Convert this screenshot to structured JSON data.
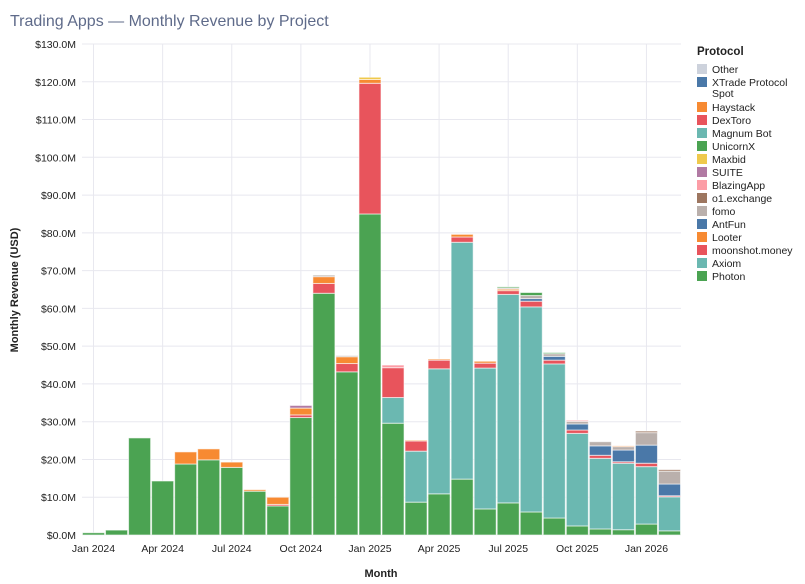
{
  "chart_data": {
    "type": "bar",
    "stacked": true,
    "title": "Trading Apps — Monthly Revenue by Project",
    "xlabel": "Month",
    "ylabel": "Monthly Revenue (USD)",
    "ylim": [
      0,
      130
    ],
    "y_unit": "USD millions",
    "grid": true,
    "legend_title": "Protocol",
    "legend_placement": "right",
    "x_tick_labels": [
      {
        "index": 0,
        "label": "Jan 2024"
      },
      {
        "index": 3,
        "label": "Apr 2024"
      },
      {
        "index": 6,
        "label": "Jul 2024"
      },
      {
        "index": 9,
        "label": "Oct 2024"
      },
      {
        "index": 12,
        "label": "Jan 2025"
      },
      {
        "index": 15,
        "label": "Apr 2025"
      },
      {
        "index": 18,
        "label": "Jul 2025"
      },
      {
        "index": 21,
        "label": "Oct 2025"
      },
      {
        "index": 24,
        "label": "Jan 2026"
      }
    ],
    "y_tick_labels": [
      "$0.0M",
      "$10.0M",
      "$20.0M",
      "$30.0M",
      "$40.0M",
      "$50.0M",
      "$60.0M",
      "$70.0M",
      "$80.0M",
      "$90.0M",
      "$100.0M",
      "$110.0M",
      "$120.0M",
      "$130.0M"
    ],
    "categories": [
      "2024-01",
      "2024-02",
      "2024-03",
      "2024-04",
      "2024-05",
      "2024-06",
      "2024-07",
      "2024-08",
      "2024-09",
      "2024-10",
      "2024-11",
      "2024-12",
      "2025-01",
      "2025-02",
      "2025-03",
      "2025-04",
      "2025-05",
      "2025-06",
      "2025-07",
      "2025-08",
      "2025-09",
      "2025-10",
      "2025-11",
      "2025-12",
      "2026-01",
      "2026-02"
    ],
    "series": [
      {
        "name": "Photon",
        "color": "#4ba352",
        "values": [
          0.6,
          1.3,
          25.7,
          14.3,
          18.8,
          19.9,
          17.9,
          11.6,
          7.7,
          31.1,
          64.0,
          43.2,
          85.0,
          29.6,
          8.7,
          10.9,
          14.8,
          6.9,
          8.5,
          6.1,
          4.5,
          2.4,
          1.6,
          1.4,
          2.9,
          1.1
        ]
      },
      {
        "name": "Axiom",
        "color": "#6bb8b1",
        "values": [
          0,
          0,
          0,
          0,
          0,
          0,
          0,
          0,
          0,
          0,
          0,
          0,
          0,
          6.8,
          13.5,
          33.1,
          62.7,
          37.3,
          55.2,
          54.3,
          40.8,
          24.5,
          18.7,
          17.6,
          15.2,
          9.0
        ]
      },
      {
        "name": "moonshot.money",
        "color": "#e8545c",
        "values": [
          0,
          0,
          0,
          0,
          0,
          0,
          0,
          0,
          0.4,
          0.7,
          2.6,
          2.2,
          34.6,
          7.9,
          2.7,
          2.3,
          1.4,
          1.3,
          1.0,
          1.5,
          1.0,
          0.9,
          0.8,
          0.4,
          0.9,
          0.3
        ]
      },
      {
        "name": "Looter",
        "color": "#f78a32",
        "values": [
          0,
          0,
          0,
          0,
          3.2,
          2.9,
          1.4,
          0.4,
          1.9,
          1.8,
          1.8,
          1.8,
          1.0,
          0,
          0.2,
          0.3,
          0.7,
          0.5,
          0.4,
          0,
          0,
          0,
          0,
          0,
          0,
          0
        ]
      },
      {
        "name": "AntFun",
        "color": "#4a78a8",
        "values": [
          0,
          0,
          0,
          0,
          0,
          0,
          0,
          0,
          0,
          0,
          0,
          0,
          0,
          0,
          0,
          0,
          0,
          0,
          0,
          0.7,
          1.0,
          1.6,
          2.5,
          3.1,
          4.8,
          3.1
        ]
      },
      {
        "name": "fomo",
        "color": "#bab0ac",
        "values": [
          0,
          0,
          0,
          0,
          0,
          0,
          0,
          0,
          0,
          0,
          0.4,
          0.3,
          0,
          0,
          0,
          0,
          0,
          0,
          0.3,
          0.8,
          0.7,
          0.7,
          1.1,
          0.9,
          3.3,
          3.4
        ]
      },
      {
        "name": "o1.exchange",
        "color": "#9d7660",
        "values": [
          0,
          0,
          0,
          0,
          0,
          0,
          0,
          0,
          0,
          0,
          0,
          0,
          0,
          0,
          0,
          0,
          0,
          0,
          0,
          0,
          0,
          0,
          0,
          0,
          0.4,
          0.4
        ]
      },
      {
        "name": "BlazingApp",
        "color": "#fc9da6",
        "values": [
          0,
          0,
          0,
          0,
          0,
          0,
          0,
          0,
          0,
          0,
          0,
          0,
          0,
          0.7,
          0,
          0,
          0,
          0,
          0,
          0,
          0,
          0.3,
          0,
          0,
          0,
          0
        ]
      },
      {
        "name": "SUITE",
        "color": "#b17aa3",
        "values": [
          0,
          0,
          0,
          0,
          0,
          0,
          0,
          0,
          0,
          0.7,
          0,
          0,
          0,
          0,
          0,
          0,
          0,
          0,
          0,
          0,
          0,
          0,
          0,
          0,
          0,
          0
        ]
      },
      {
        "name": "Maxbid",
        "color": "#efc94c",
        "values": [
          0,
          0,
          0,
          0,
          0,
          0,
          0,
          0,
          0,
          0,
          0,
          0,
          0.6,
          0,
          0,
          0,
          0,
          0,
          0,
          0,
          0,
          0,
          0,
          0,
          0,
          0
        ]
      },
      {
        "name": "UnicornX",
        "color": "#4ba352",
        "values": [
          0,
          0,
          0,
          0,
          0,
          0,
          0,
          0,
          0,
          0,
          0,
          0,
          0,
          0,
          0,
          0,
          0,
          0,
          0.3,
          0.8,
          0.3,
          0,
          0,
          0,
          0,
          0
        ]
      },
      {
        "name": "Magnum Bot",
        "color": "#6bb8b1",
        "values": [
          0,
          0,
          0,
          0,
          0,
          0,
          0,
          0,
          0,
          0,
          0,
          0,
          0,
          0,
          0,
          0,
          0,
          0,
          0,
          0,
          0,
          0,
          0,
          0,
          0,
          0
        ]
      },
      {
        "name": "DexToro",
        "color": "#e8545c",
        "values": [
          0,
          0,
          0,
          0,
          0,
          0,
          0,
          0,
          0,
          0,
          0,
          0,
          0,
          0,
          0,
          0,
          0,
          0,
          0,
          0,
          0,
          0,
          0,
          0,
          0,
          0
        ]
      },
      {
        "name": "Haystack",
        "color": "#f78a32",
        "values": [
          0,
          0,
          0,
          0,
          0,
          0,
          0,
          0,
          0,
          0,
          0,
          0,
          0,
          0,
          0,
          0,
          0,
          0,
          0,
          0,
          0,
          0,
          0,
          0.2,
          0,
          0
        ]
      },
      {
        "name": "XTrade Protocol Spot",
        "color": "#4a78a8",
        "values": [
          0,
          0,
          0,
          0,
          0,
          0,
          0,
          0,
          0,
          0,
          0,
          0,
          0,
          0,
          0,
          0,
          0,
          0,
          0,
          0,
          0,
          0,
          0,
          0,
          0,
          0
        ]
      },
      {
        "name": "Other",
        "color": "#cdd2dc",
        "values": [
          0,
          0,
          0,
          0,
          0,
          0,
          0,
          0,
          0,
          0,
          0,
          0,
          0,
          0,
          0,
          0,
          0,
          0,
          0,
          0,
          0,
          0,
          0,
          0,
          0,
          0
        ]
      }
    ]
  }
}
